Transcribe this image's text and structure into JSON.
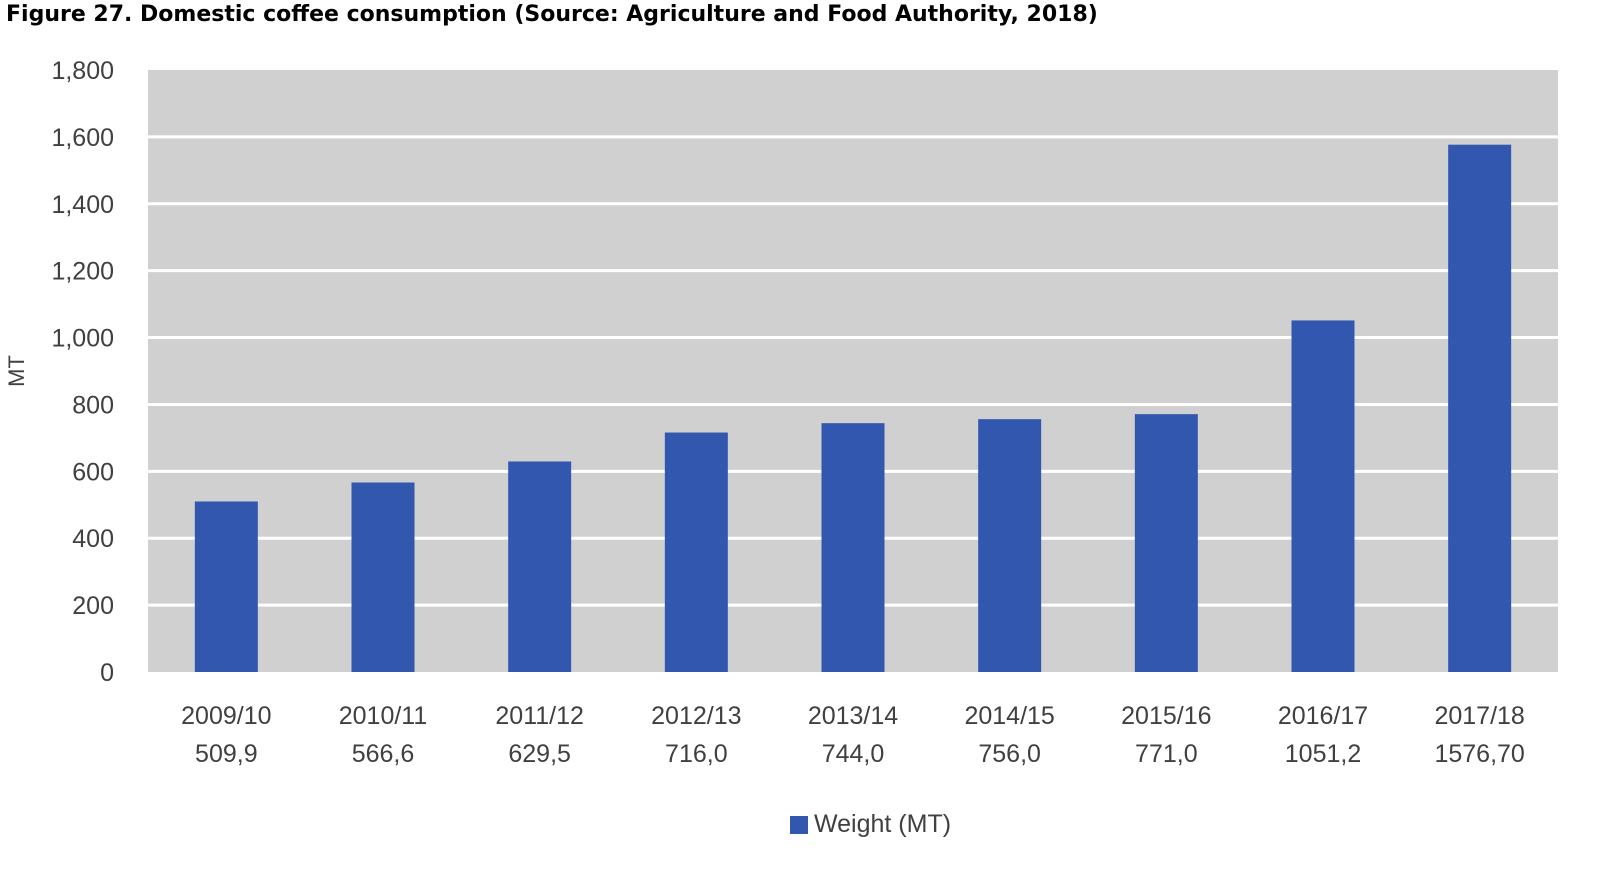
{
  "figure": {
    "title": "Figure 27. Domestic coffee consumption (Source: Agriculture and Food Authority, 2018)"
  },
  "colors": {
    "bar": "#3157AE",
    "plot_background": "#D0D0D0",
    "gridline": "#FFFFFF",
    "text": "#404040"
  },
  "chart_data": {
    "type": "bar",
    "title": "",
    "xlabel": "",
    "ylabel": "MT",
    "ylim": [
      0,
      1800
    ],
    "yticks": [
      "0",
      "200",
      "400",
      "600",
      "800",
      "1,000",
      "1,200",
      "1,400",
      "1,600",
      "1,800"
    ],
    "grid": true,
    "legend_position": "bottom",
    "categories": [
      "2009/10",
      "2010/11",
      "2011/12",
      "2012/13",
      "2013/14",
      "2014/15",
      "2015/16",
      "2016/17",
      "2017/18"
    ],
    "category_value_labels": [
      "509,9",
      "566,6",
      "629,5",
      "716,0",
      "744,0",
      "756,0",
      "771,0",
      "1051,2",
      "1576,70"
    ],
    "series": [
      {
        "name": "Weight (MT)",
        "values": [
          509.9,
          566.6,
          629.5,
          716.0,
          744.0,
          756.0,
          771.0,
          1051.2,
          1576.7
        ]
      }
    ]
  }
}
